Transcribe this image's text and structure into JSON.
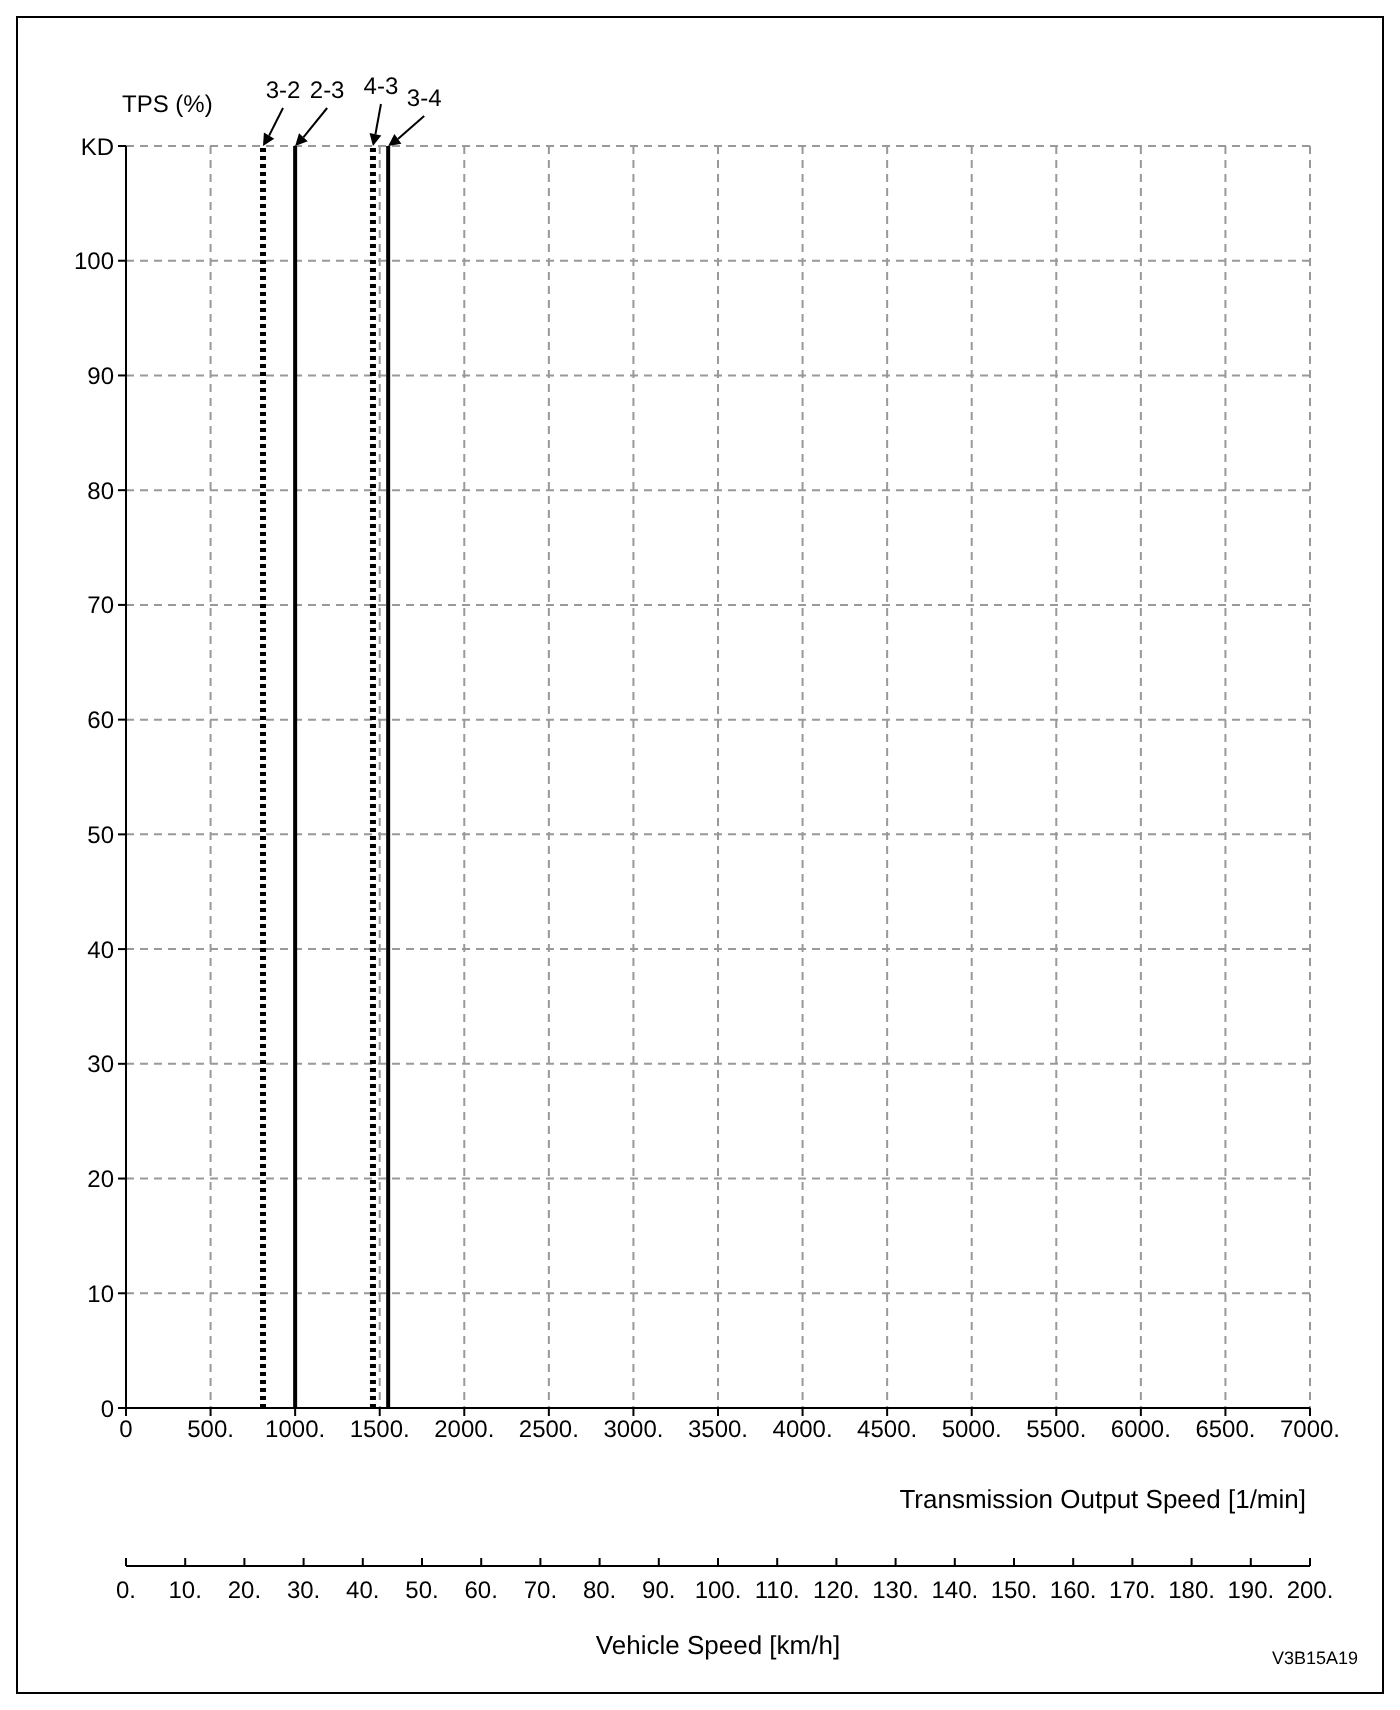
{
  "chart_data": {
    "type": "line",
    "ylabel": "TPS (%)",
    "xlabel": "Transmission Output Speed [1/min]",
    "x2label": "Vehicle Speed [km/h]",
    "series": [
      {
        "name": "3-2",
        "color": "#000000",
        "line_style": "dotted",
        "x": [
          810,
          810
        ],
        "values": [
          0,
          110
        ]
      },
      {
        "name": "2-3",
        "color": "#000000",
        "line_style": "solid",
        "x": [
          1000,
          1000
        ],
        "values": [
          0,
          110
        ]
      },
      {
        "name": "4-3",
        "color": "#000000",
        "line_style": "dotted",
        "x": [
          1460,
          1460
        ],
        "values": [
          0,
          110
        ]
      },
      {
        "name": "3-4",
        "color": "#000000",
        "line_style": "solid",
        "x": [
          1550,
          1550
        ],
        "values": [
          0,
          110
        ]
      }
    ],
    "xlim": [
      0,
      7000
    ],
    "xticks": [
      0,
      {
        "value": 500,
        "label": "500."
      },
      {
        "value": 1000,
        "label": "1000."
      },
      {
        "value": 1500,
        "label": "1500."
      },
      {
        "value": 2000,
        "label": "2000."
      },
      {
        "value": 2500,
        "label": "2500."
      },
      {
        "value": 3000,
        "label": "3000."
      },
      {
        "value": 3500,
        "label": "3500."
      },
      {
        "value": 4000,
        "label": "4000."
      },
      {
        "value": 4500,
        "label": "4500."
      },
      {
        "value": 5000,
        "label": "5000."
      },
      {
        "value": 5500,
        "label": "5500."
      },
      {
        "value": 6000,
        "label": "6000."
      },
      {
        "value": 6500,
        "label": "6500."
      },
      {
        "value": 7000,
        "label": "7000."
      }
    ],
    "x2lim": [
      0,
      200
    ],
    "x2ticks": [
      {
        "value": 0,
        "label": "0."
      },
      {
        "value": 10,
        "label": "10."
      },
      {
        "value": 20,
        "label": "20."
      },
      {
        "value": 30,
        "label": "30."
      },
      {
        "value": 40,
        "label": "40."
      },
      {
        "value": 50,
        "label": "50."
      },
      {
        "value": 60,
        "label": "60."
      },
      {
        "value": 70,
        "label": "70."
      },
      {
        "value": 80,
        "label": "80."
      },
      {
        "value": 90,
        "label": "90."
      },
      {
        "value": 100,
        "label": "100."
      },
      {
        "value": 110,
        "label": "110."
      },
      {
        "value": 120,
        "label": "120."
      },
      {
        "value": 130,
        "label": "130."
      },
      {
        "value": 140,
        "label": "140."
      },
      {
        "value": 150,
        "label": "150."
      },
      {
        "value": 160,
        "label": "160."
      },
      {
        "value": 170,
        "label": "170."
      },
      {
        "value": 180,
        "label": "180."
      },
      {
        "value": 190,
        "label": "190."
      },
      {
        "value": 200,
        "label": "200."
      }
    ],
    "ylim": [
      0,
      110
    ],
    "yticks": [
      0,
      10,
      20,
      30,
      40,
      50,
      60,
      70,
      80,
      90,
      100,
      {
        "value": 110,
        "label": "KD"
      }
    ],
    "grid": true,
    "annotations": [
      "V3B15A19"
    ]
  }
}
